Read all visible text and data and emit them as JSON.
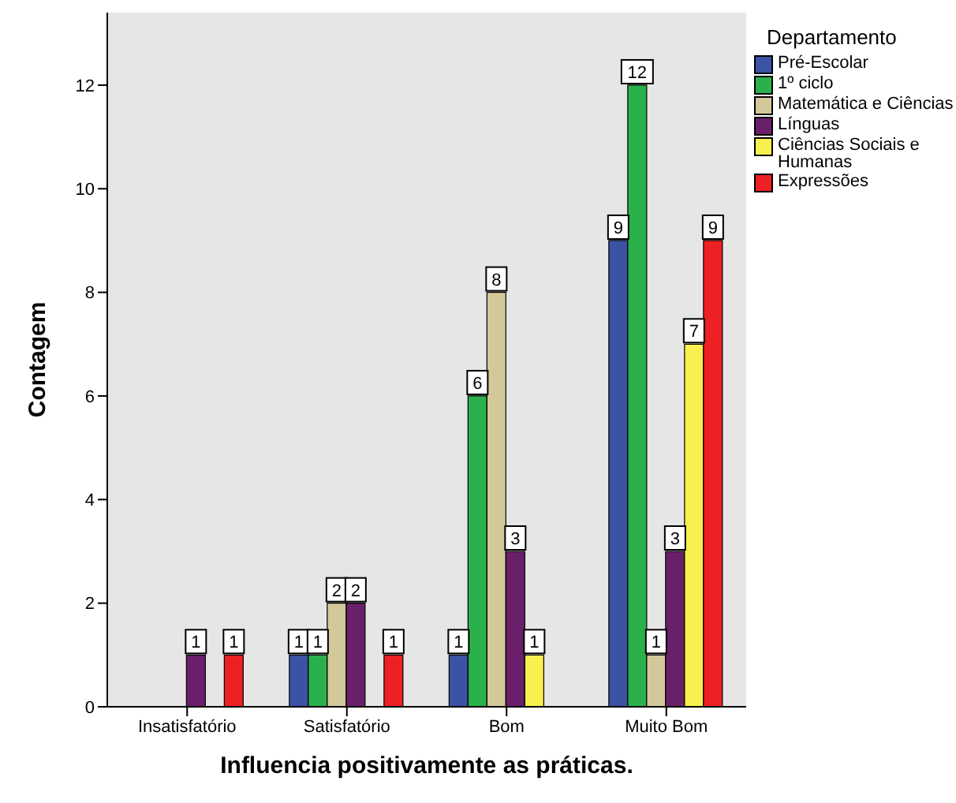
{
  "chart_data": {
    "type": "bar",
    "xlabel": "Influencia positivamente as práticas.",
    "ylabel": "Contagem",
    "legend_title": "Departamento",
    "categories": [
      "Insatisfatório",
      "Satisfatório",
      "Bom",
      "Muito Bom"
    ],
    "series": [
      {
        "name": "Pré-Escolar",
        "color": "#3a53a4",
        "values": [
          null,
          1,
          1,
          9
        ]
      },
      {
        "name": "1º ciclo",
        "color": "#2ab14b",
        "values": [
          null,
          1,
          6,
          12
        ]
      },
      {
        "name": "Matemática e Ciências",
        "color": "#d2c89a",
        "values": [
          null,
          2,
          8,
          1
        ]
      },
      {
        "name": "Línguas",
        "color": "#6a1f6b",
        "values": [
          1,
          2,
          3,
          3
        ]
      },
      {
        "name": "Ciências Sociais e Humanas",
        "color": "#f9f04f",
        "values": [
          null,
          null,
          1,
          7
        ]
      },
      {
        "name": "Expressões",
        "color": "#ed2024",
        "values": [
          1,
          1,
          null,
          9
        ]
      }
    ],
    "ylim": [
      0,
      13.4
    ],
    "yticks": [
      0,
      2,
      4,
      6,
      8,
      10,
      12
    ],
    "grid": false,
    "legend": "top right",
    "data_labels": true
  }
}
